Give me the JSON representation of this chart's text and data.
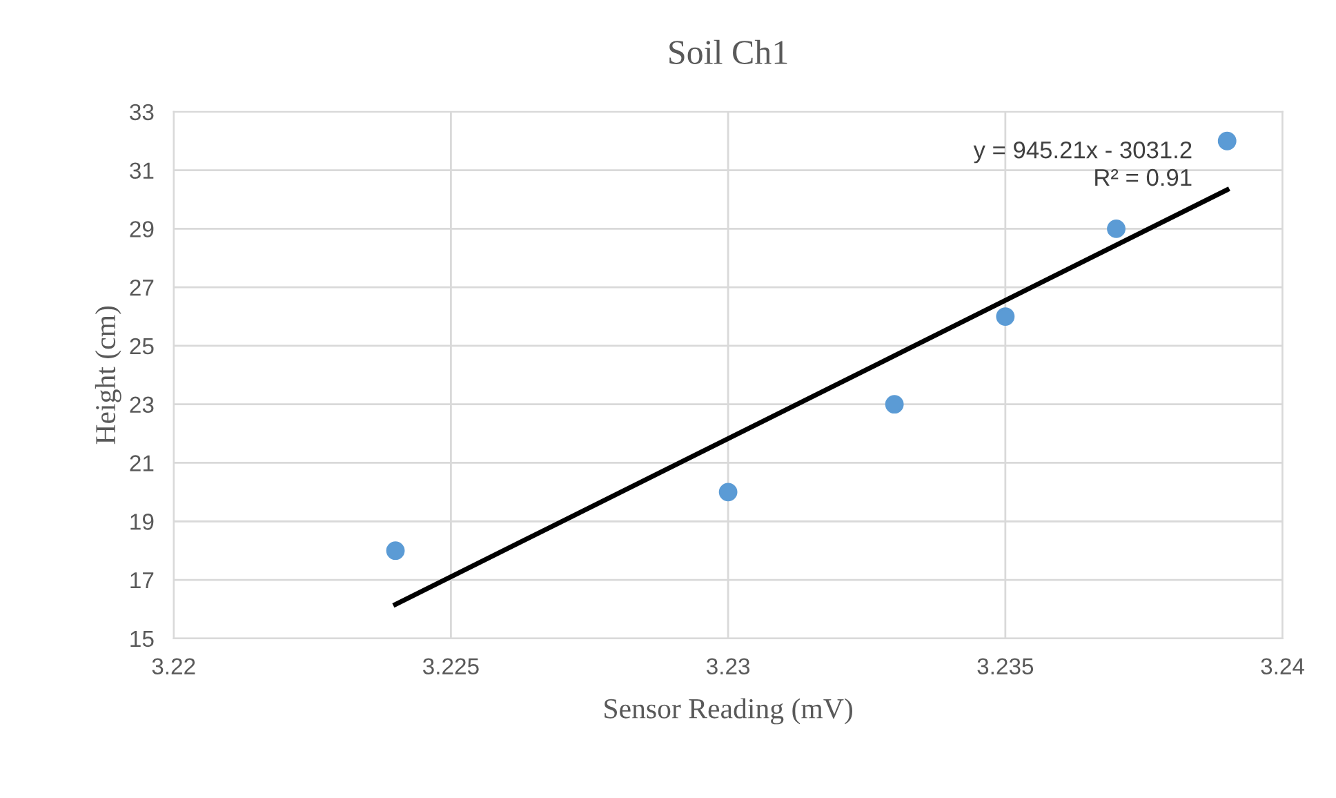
{
  "chart_data": {
    "type": "scatter",
    "title": "Soil Ch1",
    "xlabel": "Sensor Reading (mV)",
    "ylabel": "Height (cm)",
    "series": [
      {
        "color": "#5b9bd5",
        "x": [
          3.224,
          3.23,
          3.233,
          3.235,
          3.237,
          3.239
        ],
        "values": [
          18,
          20,
          23,
          26,
          29,
          32
        ]
      },
      {
        "type": "line",
        "marker": "none",
        "color": "#000000",
        "x": [
          3.224,
          3.239
        ],
        "values": [
          16.16,
          30.33
        ]
      }
    ],
    "annotations": [
      "y = 945.21x - 3031.2\nR² = 0.91"
    ],
    "xlim": [
      3.22,
      3.24
    ],
    "xticks": [
      3.22,
      3.225,
      3.23,
      3.235,
      3.24
    ],
    "ylim": [
      15,
      33
    ],
    "yticks": [
      15,
      17,
      19,
      21,
      23,
      25,
      27,
      29,
      31,
      33
    ],
    "grid": true,
    "marker": "circle",
    "legend": false
  }
}
